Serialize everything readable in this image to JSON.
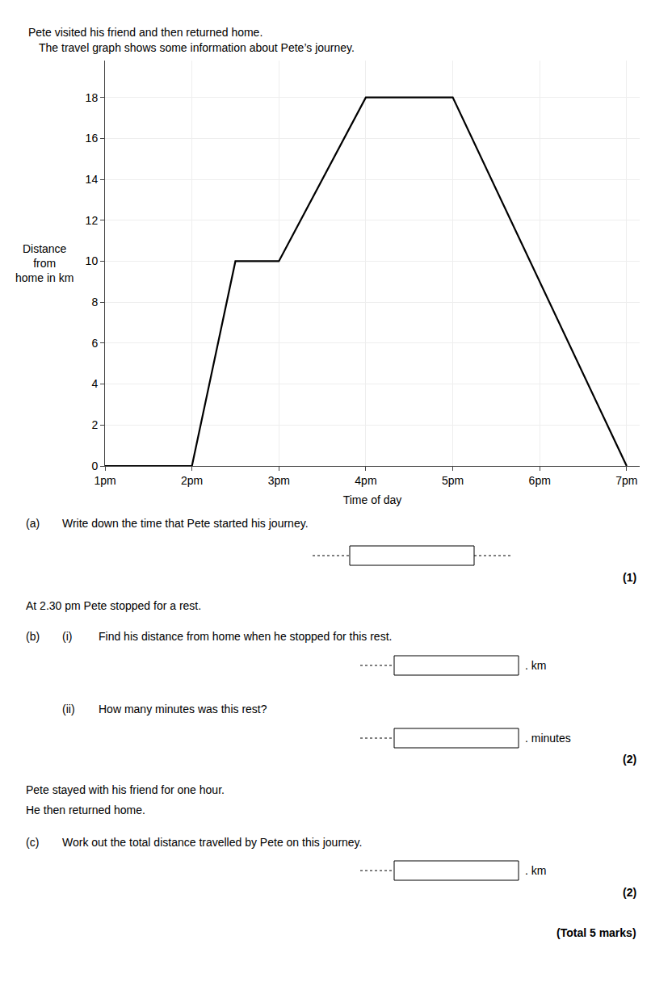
{
  "chart_data": {
    "type": "line",
    "x": [
      1.0,
      2.0,
      2.5,
      3.0,
      4.0,
      5.0,
      7.0
    ],
    "values": [
      0,
      0,
      10,
      10,
      18,
      18,
      0
    ],
    "color": "#000000",
    "xlabel": "Time of day",
    "ylabel": "Distance\nfrom\nhome in km",
    "xlim": [
      1,
      7.15
    ],
    "ylim": [
      0,
      19.8
    ],
    "xticks": [
      {
        "value": 1,
        "label": "1pm"
      },
      {
        "value": 2,
        "label": "2pm"
      },
      {
        "value": 3,
        "label": "3pm"
      },
      {
        "value": 4,
        "label": "4pm"
      },
      {
        "value": 5,
        "label": "5pm"
      },
      {
        "value": 6,
        "label": "6pm"
      },
      {
        "value": 7,
        "label": "7pm"
      }
    ],
    "yticks": [
      0,
      2,
      4,
      6,
      8,
      10,
      12,
      14,
      16,
      18
    ],
    "grid": true,
    "annotations": [
      "Pete visited his friend and then returned home.",
      "The travel graph shows some information about Pete’s journey.",
      "(a)",
      "Write down the time that Pete started his journey.",
      "(1)",
      "At 2.30 pm Pete stopped for a rest.",
      "(b)",
      "(i)",
      "Find his distance from home when he stopped for this rest.",
      ". km",
      "(ii)",
      "How many minutes was this rest?",
      ". minutes",
      "(2)",
      "Pete stayed with his friend for one hour.",
      "He then returned home.",
      "(c)",
      "Work out the total distance travelled by Pete on this journey.",
      ". km",
      "(2)",
      "(Total 5 marks)"
    ]
  }
}
